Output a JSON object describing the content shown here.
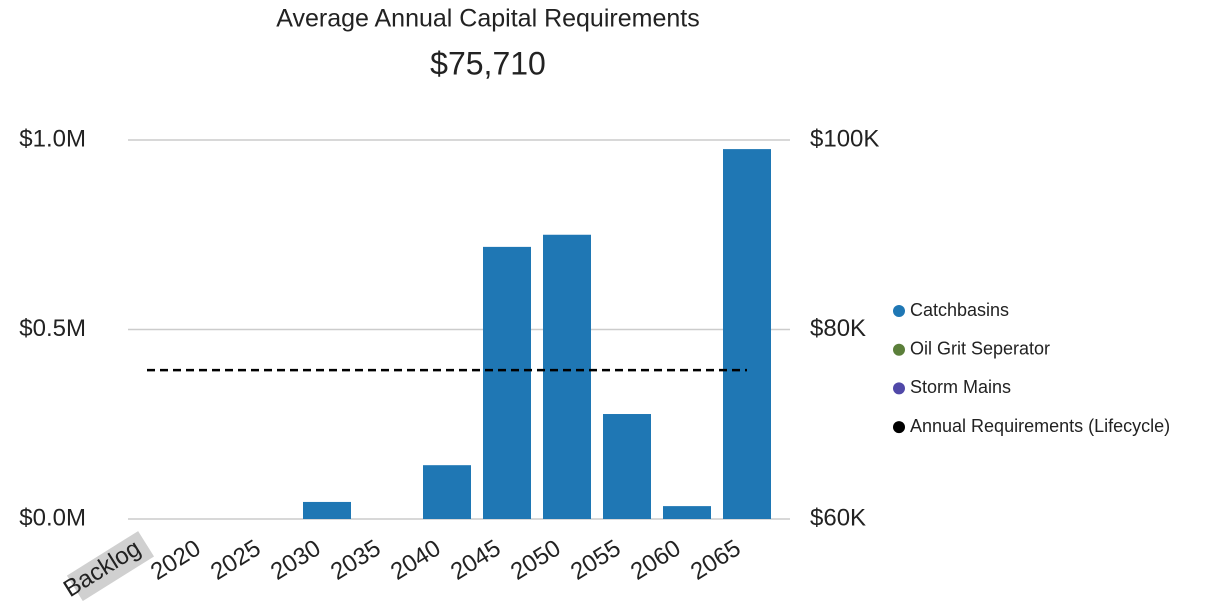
{
  "chart_data": {
    "type": "bar",
    "title": "Average Annual Capital Requirements",
    "subtitle": "$75,710",
    "categories": [
      "Backlog",
      "2020",
      "2025",
      "2030",
      "2035",
      "2040",
      "2045",
      "2050",
      "2055",
      "2060",
      "2065"
    ],
    "series": [
      {
        "name": "Catchbasins",
        "color": "#1f77b4",
        "values": [
          0,
          0,
          0,
          45000,
          0,
          142000,
          718000,
          750000,
          277000,
          34000,
          976000
        ]
      },
      {
        "name": "Oil Grit Seperator",
        "color": "#5b7f3a",
        "values": [
          0,
          0,
          0,
          0,
          0,
          0,
          0,
          0,
          0,
          0,
          0
        ]
      },
      {
        "name": "Storm Mains",
        "color": "#5048a8",
        "values": [
          0,
          0,
          0,
          0,
          0,
          0,
          0,
          0,
          0,
          0,
          0
        ]
      },
      {
        "name": "Annual Requirements (Lifecycle)",
        "color": "#000000",
        "type": "line",
        "axis": "y2",
        "dashed": true,
        "values": [
          75710,
          75710,
          75710,
          75710,
          75710,
          75710,
          75710,
          75710,
          75710,
          75710,
          75710
        ]
      }
    ],
    "ylim": [
      0,
      1000000
    ],
    "yticks": [
      {
        "value": 0,
        "label": "$0.0M"
      },
      {
        "value": 500000,
        "label": "$0.5M"
      },
      {
        "value": 1000000,
        "label": "$1.0M"
      }
    ],
    "y2lim": [
      60000,
      100000
    ],
    "y2ticks": [
      {
        "value": 60000,
        "label": "$60K"
      },
      {
        "value": 80000,
        "label": "$80K"
      },
      {
        "value": 100000,
        "label": "$100K"
      }
    ],
    "grid": true,
    "legend": "right"
  }
}
